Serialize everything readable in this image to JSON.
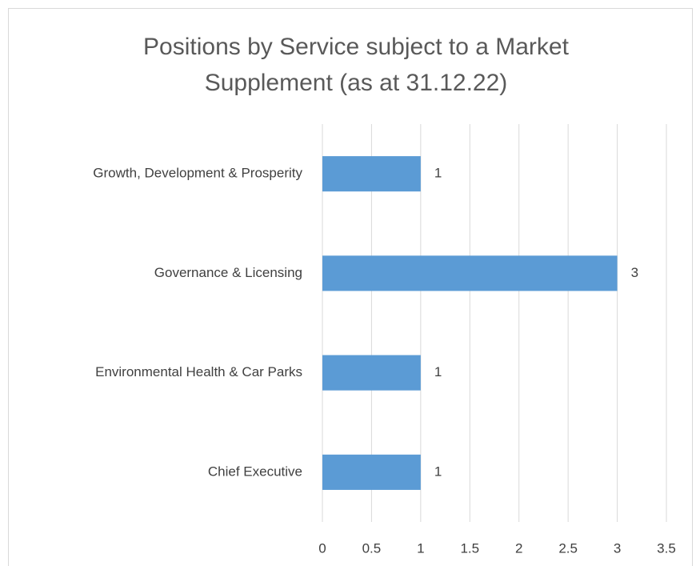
{
  "chart_data": {
    "type": "hbar",
    "title": "Positions by Service subject to a Market Supplement (as at 31.12.22)",
    "categories": [
      "Growth, Development & Prosperity",
      "Governance & Licensing",
      "Environmental Health & Car Parks",
      "Chief Executive"
    ],
    "values": [
      1,
      3,
      1,
      1
    ],
    "color": "#5b9bd5",
    "xlim": [
      0,
      3.5
    ],
    "xticks": [
      0,
      0.5,
      1,
      1.5,
      2,
      2.5,
      3,
      3.5
    ],
    "grid": true
  }
}
